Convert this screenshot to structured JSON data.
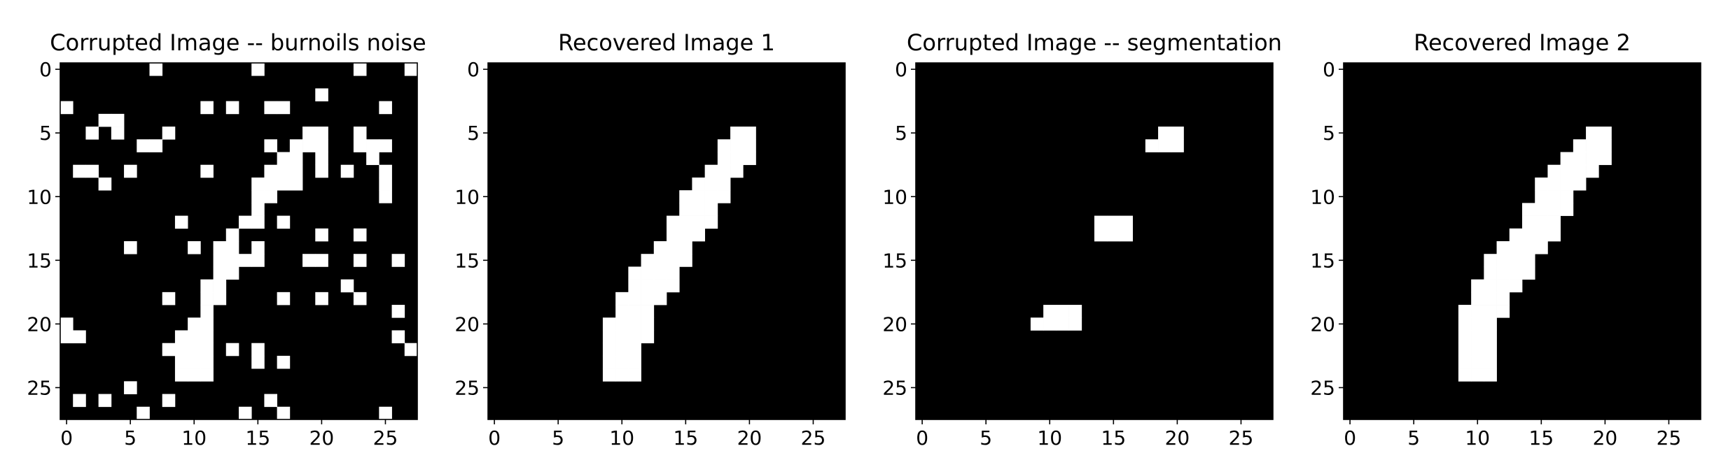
{
  "figure": {
    "background": "#ffffff",
    "pixel_on_color": "#ffffff",
    "pixel_off_color": "#000000"
  },
  "chart_data": [
    {
      "type": "heatmap",
      "title": "Corrupted Image -- burnoils noise",
      "grid": false,
      "xlabel": "",
      "ylabel": "",
      "shape": [
        28,
        28
      ],
      "xlim": [
        -0.5,
        27.5
      ],
      "ylim": [
        27.5,
        -0.5
      ],
      "xticks": [
        "0",
        "5",
        "10",
        "15",
        "20",
        "25"
      ],
      "yticks": [
        "0",
        "5",
        "10",
        "15",
        "20",
        "25"
      ],
      "on_pixels": [
        [
          0,
          7
        ],
        [
          0,
          15
        ],
        [
          0,
          23
        ],
        [
          0,
          27
        ],
        [
          2,
          20
        ],
        [
          3,
          0
        ],
        [
          3,
          11
        ],
        [
          3,
          13
        ],
        [
          3,
          16
        ],
        [
          3,
          17
        ],
        [
          3,
          25
        ],
        [
          4,
          3
        ],
        [
          4,
          4
        ],
        [
          5,
          2
        ],
        [
          5,
          4
        ],
        [
          5,
          8
        ],
        [
          5,
          19
        ],
        [
          5,
          20
        ],
        [
          5,
          23
        ],
        [
          6,
          6
        ],
        [
          6,
          7
        ],
        [
          6,
          16
        ],
        [
          6,
          18
        ],
        [
          6,
          19
        ],
        [
          6,
          20
        ],
        [
          6,
          23
        ],
        [
          6,
          24
        ],
        [
          6,
          25
        ],
        [
          7,
          17
        ],
        [
          7,
          18
        ],
        [
          7,
          20
        ],
        [
          7,
          24
        ],
        [
          8,
          1
        ],
        [
          8,
          2
        ],
        [
          8,
          5
        ],
        [
          8,
          11
        ],
        [
          8,
          16
        ],
        [
          8,
          17
        ],
        [
          8,
          18
        ],
        [
          8,
          20
        ],
        [
          8,
          22
        ],
        [
          8,
          25
        ],
        [
          9,
          3
        ],
        [
          9,
          15
        ],
        [
          9,
          16
        ],
        [
          9,
          17
        ],
        [
          9,
          18
        ],
        [
          9,
          25
        ],
        [
          10,
          15
        ],
        [
          10,
          16
        ],
        [
          10,
          25
        ],
        [
          11,
          15
        ],
        [
          12,
          9
        ],
        [
          12,
          14
        ],
        [
          12,
          15
        ],
        [
          12,
          17
        ],
        [
          13,
          13
        ],
        [
          13,
          20
        ],
        [
          13,
          23
        ],
        [
          14,
          5
        ],
        [
          14,
          10
        ],
        [
          14,
          12
        ],
        [
          14,
          13
        ],
        [
          14,
          15
        ],
        [
          15,
          12
        ],
        [
          15,
          13
        ],
        [
          15,
          14
        ],
        [
          15,
          15
        ],
        [
          15,
          19
        ],
        [
          15,
          20
        ],
        [
          15,
          23
        ],
        [
          15,
          26
        ],
        [
          16,
          12
        ],
        [
          16,
          13
        ],
        [
          17,
          11
        ],
        [
          17,
          12
        ],
        [
          17,
          22
        ],
        [
          18,
          8
        ],
        [
          18,
          11
        ],
        [
          18,
          12
        ],
        [
          18,
          17
        ],
        [
          18,
          20
        ],
        [
          18,
          23
        ],
        [
          19,
          11
        ],
        [
          19,
          26
        ],
        [
          20,
          0
        ],
        [
          20,
          10
        ],
        [
          20,
          11
        ],
        [
          21,
          0
        ],
        [
          21,
          1
        ],
        [
          21,
          9
        ],
        [
          21,
          10
        ],
        [
          21,
          11
        ],
        [
          21,
          26
        ],
        [
          22,
          8
        ],
        [
          22,
          9
        ],
        [
          22,
          10
        ],
        [
          22,
          11
        ],
        [
          22,
          13
        ],
        [
          22,
          15
        ],
        [
          22,
          27
        ],
        [
          23,
          9
        ],
        [
          23,
          10
        ],
        [
          23,
          11
        ],
        [
          23,
          15
        ],
        [
          23,
          17
        ],
        [
          24,
          9
        ],
        [
          24,
          10
        ],
        [
          24,
          11
        ],
        [
          25,
          5
        ],
        [
          26,
          1
        ],
        [
          26,
          3
        ],
        [
          26,
          8
        ],
        [
          26,
          16
        ],
        [
          27,
          6
        ],
        [
          27,
          14
        ],
        [
          27,
          17
        ],
        [
          27,
          25
        ]
      ]
    },
    {
      "type": "heatmap",
      "title": "Recovered Image 1",
      "grid": false,
      "xlabel": "",
      "ylabel": "",
      "shape": [
        28,
        28
      ],
      "xlim": [
        -0.5,
        27.5
      ],
      "ylim": [
        27.5,
        -0.5
      ],
      "xticks": [
        "0",
        "5",
        "10",
        "15",
        "20",
        "25"
      ],
      "yticks": [
        "0",
        "5",
        "10",
        "15",
        "20",
        "25"
      ],
      "on_pixels": [
        [
          5,
          19
        ],
        [
          5,
          20
        ],
        [
          6,
          18
        ],
        [
          6,
          19
        ],
        [
          6,
          20
        ],
        [
          7,
          18
        ],
        [
          7,
          19
        ],
        [
          7,
          20
        ],
        [
          8,
          17
        ],
        [
          8,
          18
        ],
        [
          8,
          19
        ],
        [
          9,
          16
        ],
        [
          9,
          17
        ],
        [
          9,
          18
        ],
        [
          10,
          15
        ],
        [
          10,
          16
        ],
        [
          10,
          17
        ],
        [
          10,
          18
        ],
        [
          11,
          15
        ],
        [
          11,
          16
        ],
        [
          11,
          17
        ],
        [
          12,
          14
        ],
        [
          12,
          15
        ],
        [
          12,
          16
        ],
        [
          12,
          17
        ],
        [
          13,
          14
        ],
        [
          13,
          15
        ],
        [
          13,
          16
        ],
        [
          14,
          13
        ],
        [
          14,
          14
        ],
        [
          14,
          15
        ],
        [
          15,
          12
        ],
        [
          15,
          13
        ],
        [
          15,
          14
        ],
        [
          15,
          15
        ],
        [
          16,
          11
        ],
        [
          16,
          12
        ],
        [
          16,
          13
        ],
        [
          16,
          14
        ],
        [
          17,
          11
        ],
        [
          17,
          12
        ],
        [
          17,
          13
        ],
        [
          17,
          14
        ],
        [
          18,
          10
        ],
        [
          18,
          11
        ],
        [
          18,
          12
        ],
        [
          18,
          13
        ],
        [
          19,
          10
        ],
        [
          19,
          11
        ],
        [
          19,
          12
        ],
        [
          20,
          9
        ],
        [
          20,
          10
        ],
        [
          20,
          11
        ],
        [
          20,
          12
        ],
        [
          21,
          9
        ],
        [
          21,
          10
        ],
        [
          21,
          11
        ],
        [
          21,
          12
        ],
        [
          22,
          9
        ],
        [
          22,
          10
        ],
        [
          22,
          11
        ],
        [
          23,
          9
        ],
        [
          23,
          10
        ],
        [
          23,
          11
        ],
        [
          24,
          9
        ],
        [
          24,
          10
        ],
        [
          24,
          11
        ]
      ]
    },
    {
      "type": "heatmap",
      "title": "Corrupted Image -- segmentation",
      "grid": false,
      "xlabel": "",
      "ylabel": "",
      "shape": [
        28,
        28
      ],
      "xlim": [
        -0.5,
        27.5
      ],
      "ylim": [
        27.5,
        -0.5
      ],
      "xticks": [
        "0",
        "5",
        "10",
        "15",
        "20",
        "25"
      ],
      "yticks": [
        "0",
        "5",
        "10",
        "15",
        "20",
        "25"
      ],
      "on_pixels": [
        [
          5,
          19
        ],
        [
          5,
          20
        ],
        [
          6,
          18
        ],
        [
          6,
          19
        ],
        [
          6,
          20
        ],
        [
          12,
          14
        ],
        [
          12,
          15
        ],
        [
          12,
          16
        ],
        [
          13,
          14
        ],
        [
          13,
          15
        ],
        [
          13,
          16
        ],
        [
          19,
          10
        ],
        [
          19,
          11
        ],
        [
          19,
          12
        ],
        [
          20,
          9
        ],
        [
          20,
          10
        ],
        [
          20,
          11
        ],
        [
          20,
          12
        ]
      ]
    },
    {
      "type": "heatmap",
      "title": "Recovered Image 2",
      "grid": false,
      "xlabel": "",
      "ylabel": "",
      "shape": [
        28,
        28
      ],
      "xlim": [
        -0.5,
        27.5
      ],
      "ylim": [
        27.5,
        -0.5
      ],
      "xticks": [
        "0",
        "5",
        "10",
        "15",
        "20",
        "25"
      ],
      "yticks": [
        "0",
        "5",
        "10",
        "15",
        "20",
        "25"
      ],
      "on_pixels": [
        [
          5,
          19
        ],
        [
          5,
          20
        ],
        [
          6,
          18
        ],
        [
          6,
          19
        ],
        [
          6,
          20
        ],
        [
          7,
          17
        ],
        [
          7,
          18
        ],
        [
          7,
          19
        ],
        [
          7,
          20
        ],
        [
          8,
          16
        ],
        [
          8,
          17
        ],
        [
          8,
          18
        ],
        [
          8,
          19
        ],
        [
          9,
          15
        ],
        [
          9,
          16
        ],
        [
          9,
          17
        ],
        [
          9,
          18
        ],
        [
          10,
          15
        ],
        [
          10,
          16
        ],
        [
          10,
          17
        ],
        [
          11,
          14
        ],
        [
          11,
          15
        ],
        [
          11,
          16
        ],
        [
          11,
          17
        ],
        [
          12,
          14
        ],
        [
          12,
          15
        ],
        [
          12,
          16
        ],
        [
          13,
          13
        ],
        [
          13,
          14
        ],
        [
          13,
          15
        ],
        [
          13,
          16
        ],
        [
          14,
          12
        ],
        [
          14,
          13
        ],
        [
          14,
          14
        ],
        [
          14,
          15
        ],
        [
          15,
          11
        ],
        [
          15,
          12
        ],
        [
          15,
          13
        ],
        [
          15,
          14
        ],
        [
          16,
          11
        ],
        [
          16,
          12
        ],
        [
          16,
          13
        ],
        [
          16,
          14
        ],
        [
          17,
          10
        ],
        [
          17,
          11
        ],
        [
          17,
          12
        ],
        [
          17,
          13
        ],
        [
          18,
          10
        ],
        [
          18,
          11
        ],
        [
          18,
          12
        ],
        [
          19,
          9
        ],
        [
          19,
          10
        ],
        [
          19,
          11
        ],
        [
          19,
          12
        ],
        [
          20,
          9
        ],
        [
          20,
          10
        ],
        [
          20,
          11
        ],
        [
          21,
          9
        ],
        [
          21,
          10
        ],
        [
          21,
          11
        ],
        [
          22,
          9
        ],
        [
          22,
          10
        ],
        [
          22,
          11
        ],
        [
          23,
          9
        ],
        [
          23,
          10
        ],
        [
          23,
          11
        ],
        [
          24,
          9
        ],
        [
          24,
          10
        ],
        [
          24,
          11
        ]
      ]
    }
  ]
}
